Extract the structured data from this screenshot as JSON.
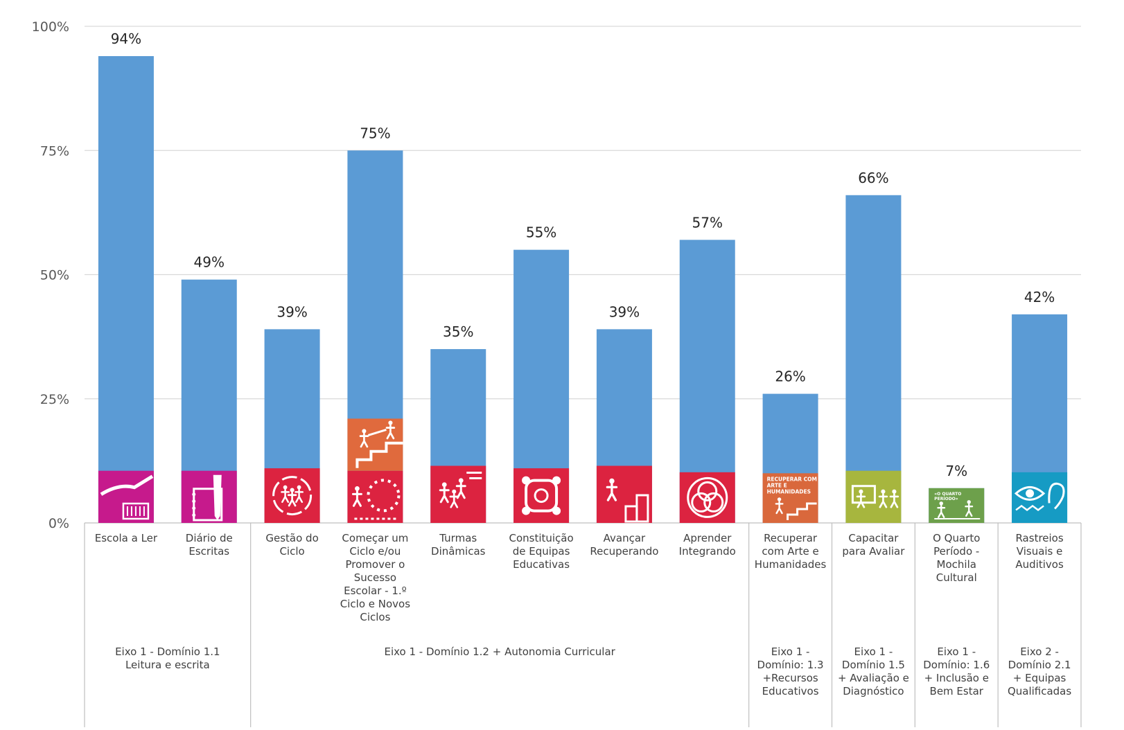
{
  "chart_data": {
    "type": "bar",
    "ylim": [
      0,
      100
    ],
    "yticks": [
      0,
      25,
      50,
      75,
      100
    ],
    "ytick_labels": [
      "0%",
      "25%",
      "50%",
      "75%",
      "100%"
    ],
    "grid": true,
    "bar_color": "#5b9bd5",
    "categories": [
      "Escola a Ler",
      "Diário de Escritas",
      "Gestão do Ciclo",
      "Começar um Ciclo e/ou Promover o Sucesso Escolar - 1.º Ciclo e Novos Ciclos",
      "Turmas Dinâmicas",
      "Constituição de Equipas Educativas",
      "Avançar Recuperando",
      "Aprender Integrando",
      "Recuperar com Arte e Humanidades",
      "Capacitar para Avaliar",
      "O Quarto Período - Mochila Cultural",
      "Rastreios Visuais e Auditivos"
    ],
    "category_lines": [
      [
        "Escola a Ler"
      ],
      [
        "Diário de",
        "Escritas"
      ],
      [
        "Gestão do",
        "Ciclo"
      ],
      [
        "Começar um",
        "Ciclo e/ou",
        "Promover o",
        "Sucesso",
        "Escolar - 1.º",
        "Ciclo e Novos",
        "Ciclos"
      ],
      [
        "Turmas",
        "Dinâmicas"
      ],
      [
        "Constituição",
        "de Equipas",
        "Educativas"
      ],
      [
        "Avançar",
        "Recuperando"
      ],
      [
        "Aprender",
        "Integrando"
      ],
      [
        "Recuperar",
        "com Arte e",
        "Humanidades"
      ],
      [
        "Capacitar",
        "para Avaliar"
      ],
      [
        "O Quarto",
        "Período -",
        "Mochila",
        "Cultural"
      ],
      [
        "Rastreios",
        "Visuais e",
        "Auditivos"
      ]
    ],
    "values": [
      94,
      49,
      39,
      75,
      35,
      55,
      39,
      57,
      26,
      66,
      7,
      42
    ],
    "value_labels": [
      "94%",
      "49%",
      "39%",
      "75%",
      "35%",
      "55%",
      "39%",
      "57%",
      "26%",
      "66%",
      "7%",
      "42%"
    ],
    "groups": [
      {
        "label": "Eixo 1 - Domínio 1.1 Leitura e escrita",
        "lines": [
          "Eixo 1 - Domínio 1.1",
          "Leitura e escrita"
        ],
        "start": 0,
        "end": 1
      },
      {
        "label": "Eixo 1 - Domínio 1.2 + Autonomia Curricular",
        "lines": [
          "Eixo 1 - Domínio 1.2 + Autonomia Curricular"
        ],
        "start": 2,
        "end": 7
      },
      {
        "label": "Eixo 1 - Domínio: 1.3 +Recursos Educativos",
        "lines": [
          "Eixo 1 -",
          "Domínio: 1.3",
          "+Recursos",
          "Educativos"
        ],
        "start": 8,
        "end": 8
      },
      {
        "label": "Eixo 1 - Domínio 1.5 + Avaliação e Diagnóstico",
        "lines": [
          "Eixo 1 -",
          "Domínio 1.5",
          "+ Avaliação e",
          "Diagnóstico"
        ],
        "start": 9,
        "end": 9
      },
      {
        "label": "Eixo 1 - Domínio: 1.6 + Inclusão e Bem Estar",
        "lines": [
          "Eixo 1 -",
          "Domínio: 1.6",
          "+ Inclusão e",
          "Bem Estar"
        ],
        "start": 10,
        "end": 10
      },
      {
        "label": "Eixo 2 - Domínio 2.1 + Equipas Qualificadas",
        "lines": [
          "Eixo 2 -",
          "Domínio 2.1",
          "+ Equipas",
          "Qualificadas"
        ],
        "start": 11,
        "end": 11
      }
    ],
    "icons": [
      {
        "name": "reading-hands-icon",
        "color": "#c61a8c",
        "level": 10.5
      },
      {
        "name": "notebook-pen-icon",
        "color": "#c61a8c",
        "level": 10.5
      },
      {
        "name": "people-cycle-icon",
        "color": "#dc2340",
        "level": 11
      },
      {
        "name": "dotted-circle-walker-icon",
        "color": "#dc2340",
        "level": 10.5,
        "extra": {
          "name": "helping-climb-stairs-icon",
          "color": "#e06a3d",
          "level": 21
        }
      },
      {
        "name": "group-motion-icon",
        "color": "#dc2340",
        "level": 11.5
      },
      {
        "name": "linked-team-icon",
        "color": "#dc2340",
        "level": 11
      },
      {
        "name": "step-up-runner-icon",
        "color": "#dc2340",
        "level": 11.5
      },
      {
        "name": "interlinked-people-icon",
        "color": "#dc2340",
        "level": 10.2
      },
      {
        "name": "stairs-arts-icon",
        "color": "#d9683c",
        "level": 10,
        "caption": [
          "RECUPERAR COM",
          "ARTE E",
          "HUMANIDADES"
        ]
      },
      {
        "name": "teacher-board-icon",
        "color": "#a7b63e",
        "level": 10.5
      },
      {
        "name": "quarto-periodo-icon",
        "color": "#6da04b",
        "level": 7,
        "caption": [
          "«O QUARTO",
          "PERÍODO»"
        ]
      },
      {
        "name": "eye-ear-icon",
        "color": "#169bc4",
        "level": 10.2
      }
    ]
  }
}
